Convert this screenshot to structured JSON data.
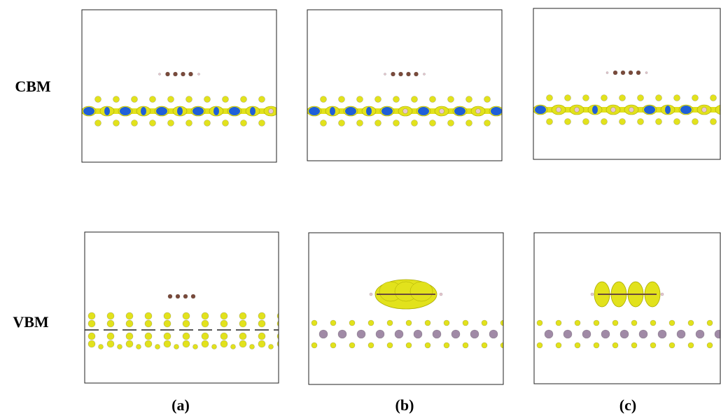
{
  "row_labels": [
    "CBM",
    "VBM"
  ],
  "panel_labels": [
    "(a)",
    "(b)",
    "(c)"
  ]
}
